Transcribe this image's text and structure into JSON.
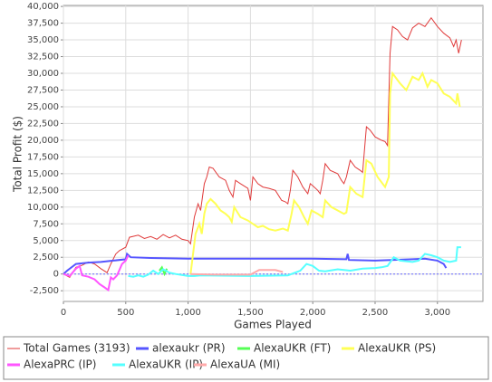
{
  "chart_data": {
    "type": "line",
    "x_label": "Games Played",
    "y_label": "Total Profit ($)",
    "xlim": [
      0,
      3365
    ],
    "ylim": [
      -4100,
      40150
    ],
    "xticks": [
      0,
      500,
      {
        "value": 1000,
        "label": "1,000"
      },
      {
        "value": 1500,
        "label": "1,500"
      },
      {
        "value": 2000,
        "label": "2,000"
      },
      {
        "value": 2500,
        "label": "2,500"
      },
      {
        "value": 3000,
        "label": "3,000"
      }
    ],
    "yticks": [
      {
        "value": -2500,
        "label": "-2,500"
      },
      0,
      {
        "value": 2500,
        "label": "2,500"
      },
      {
        "value": 5000,
        "label": "5,000"
      },
      {
        "value": 7500,
        "label": "7,500"
      },
      {
        "value": 10000,
        "label": "10,000"
      },
      {
        "value": 12500,
        "label": "12,500"
      },
      {
        "value": 15000,
        "label": "15,000"
      },
      {
        "value": 17500,
        "label": "17,500"
      },
      {
        "value": 20000,
        "label": "20,000"
      },
      {
        "value": 22500,
        "label": "22,500"
      },
      {
        "value": 25000,
        "label": "25,000"
      },
      {
        "value": 27500,
        "label": "27,500"
      },
      {
        "value": 30000,
        "label": "30,000"
      },
      {
        "value": 32500,
        "label": "32,500"
      },
      {
        "value": 35000,
        "label": "35,000"
      },
      {
        "value": 37500,
        "label": "37,500"
      },
      {
        "value": 40000,
        "label": "40,000"
      }
    ],
    "grid": true,
    "legend": "bottom",
    "series": [
      {
        "name": "Total Games (3193)",
        "color": "#e03a3a",
        "x": [
          0,
          50,
          100,
          150,
          200,
          250,
          300,
          350,
          380,
          420,
          450,
          500,
          530,
          600,
          650,
          700,
          750,
          800,
          850,
          900,
          950,
          1000,
          1020,
          1050,
          1080,
          1100,
          1130,
          1150,
          1170,
          1200,
          1250,
          1300,
          1330,
          1360,
          1380,
          1420,
          1480,
          1500,
          1520,
          1560,
          1600,
          1650,
          1700,
          1750,
          1780,
          1800,
          1820,
          1840,
          1880,
          1920,
          1960,
          1980,
          2000,
          2040,
          2060,
          2080,
          2100,
          2140,
          2200,
          2230,
          2250,
          2270,
          2300,
          2340,
          2380,
          2400,
          2430,
          2460,
          2500,
          2550,
          2580,
          2600,
          2620,
          2640,
          2680,
          2720,
          2760,
          2800,
          2850,
          2900,
          2950,
          3000,
          3050,
          3100,
          3130,
          3150,
          3170,
          3193
        ],
        "values": [
          0,
          -500,
          1000,
          1300,
          1800,
          1500,
          800,
          200,
          1500,
          3000,
          3500,
          4000,
          5500,
          5800,
          5300,
          5600,
          5200,
          5900,
          5400,
          5800,
          5200,
          5000,
          4500,
          8500,
          10500,
          9500,
          13500,
          14500,
          16000,
          15800,
          14500,
          14000,
          12500,
          11500,
          14000,
          13500,
          12800,
          11000,
          14500,
          13500,
          13000,
          12800,
          12500,
          11000,
          10800,
          10500,
          12500,
          15500,
          14500,
          13000,
          12000,
          13500,
          13200,
          12500,
          12000,
          14000,
          16500,
          15500,
          15000,
          14000,
          13500,
          14500,
          17000,
          16000,
          15500,
          15200,
          22000,
          21500,
          20500,
          20000,
          19800,
          19200,
          33000,
          37000,
          36500,
          35500,
          35000,
          36800,
          37500,
          37000,
          38300,
          37000,
          36000,
          35300,
          34000,
          35000,
          33000,
          35000
        ]
      },
      {
        "name": "alexaukr (PR)",
        "color": "#5555ff",
        "x": [
          0,
          30,
          100,
          200,
          300,
          400,
          500,
          510,
          540,
          700,
          1000,
          1500,
          2000,
          2270,
          2280,
          2290,
          2500,
          2800,
          2900,
          3000,
          3050,
          3070
        ],
        "values": [
          0,
          500,
          1500,
          1700,
          1800,
          2000,
          2200,
          3000,
          2500,
          2400,
          2300,
          2300,
          2300,
          2200,
          3000,
          2100,
          2000,
          2200,
          2300,
          2000,
          1500,
          900
        ]
      },
      {
        "name": "AlexaUKR (FT)",
        "color": "#55ff55",
        "x": [
          770,
          790,
          810,
          830
        ],
        "values": [
          500,
          1000,
          0,
          800
        ]
      },
      {
        "name": "AlexaUKR (PS)",
        "color": "#ffff55",
        "x": [
          1020,
          1030,
          1060,
          1090,
          1110,
          1130,
          1150,
          1180,
          1220,
          1260,
          1300,
          1330,
          1350,
          1370,
          1420,
          1480,
          1520,
          1560,
          1600,
          1650,
          1700,
          1760,
          1800,
          1830,
          1850,
          1890,
          1930,
          1960,
          1990,
          2040,
          2080,
          2100,
          2150,
          2200,
          2250,
          2270,
          2300,
          2350,
          2400,
          2430,
          2470,
          2520,
          2580,
          2610,
          2620,
          2640,
          2700,
          2750,
          2800,
          2850,
          2880,
          2920,
          2950,
          3000,
          3050,
          3100,
          3150,
          3160,
          3180
        ],
        "values": [
          0,
          1500,
          6000,
          7500,
          6000,
          9000,
          10500,
          11200,
          10500,
          9500,
          9000,
          8500,
          7800,
          10000,
          8500,
          8000,
          7500,
          7000,
          7200,
          6700,
          6500,
          6800,
          6500,
          9000,
          11000,
          10000,
          8500,
          7500,
          9500,
          9000,
          8500,
          11000,
          10000,
          9500,
          9000,
          9200,
          13000,
          12000,
          11500,
          17000,
          16500,
          14500,
          13000,
          14500,
          27000,
          30000,
          28500,
          27500,
          29500,
          29000,
          30000,
          28000,
          29000,
          28500,
          27000,
          26500,
          25500,
          27000,
          25000
        ]
      },
      {
        "name": "AlexaPRC (IP)",
        "color": "#ff55ff",
        "x": [
          0,
          50,
          100,
          130,
          150,
          200,
          250,
          290,
          330,
          360,
          380,
          400,
          430,
          470,
          500,
          520
        ],
        "values": [
          0,
          -300,
          800,
          1200,
          -200,
          -400,
          -800,
          -1500,
          -2000,
          -2400,
          -500,
          -800,
          -200,
          1500,
          2000,
          2800
        ]
      },
      {
        "name": "AlexaUKR (IP)",
        "color": "#55ffff",
        "x": [
          520,
          560,
          600,
          640,
          680,
          720,
          760,
          800,
          850,
          900,
          1000,
          1050,
          1100,
          1500,
          1800,
          1900,
          1950,
          2000,
          2050,
          2100,
          2200,
          2300,
          2400,
          2500,
          2550,
          2600,
          2650,
          2700,
          2800,
          2850,
          2900,
          2950,
          3000,
          3050,
          3100,
          3150,
          3160,
          3190
        ],
        "values": [
          -300,
          -400,
          -200,
          -400,
          -100,
          500,
          0,
          700,
          200,
          0,
          -300,
          -300,
          -200,
          -300,
          -200,
          500,
          1500,
          1200,
          500,
          400,
          700,
          500,
          800,
          900,
          1000,
          1200,
          2500,
          2000,
          1800,
          2000,
          3000,
          2800,
          2500,
          2000,
          1800,
          2000,
          4000,
          4000
        ]
      },
      {
        "name": "AlexaUA (MI)",
        "color": "#ffaaaa",
        "x": [
          1020,
          1200,
          1500,
          1570,
          1700,
          1760
        ],
        "values": [
          0,
          -100,
          -100,
          600,
          600,
          300
        ]
      }
    ]
  }
}
